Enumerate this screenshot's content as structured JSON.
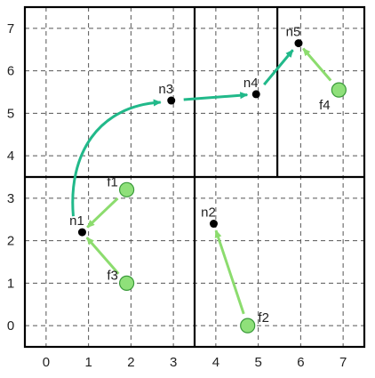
{
  "colors": {
    "grid_dash": "#555555",
    "frame": "#000000",
    "node_fill": "#000000",
    "leaf_fill": "#8fe07a",
    "leaf_stroke": "#3a9a3a",
    "leaf_arrow": "#8cdc6e",
    "node_arrow": "#21b98a"
  },
  "axes": {
    "x_ticks": [
      "0",
      "1",
      "2",
      "3",
      "4",
      "5",
      "6",
      "7"
    ],
    "y_ticks": [
      "0",
      "1",
      "2",
      "3",
      "4",
      "5",
      "6",
      "7"
    ]
  },
  "nodes": [
    {
      "id": "n1",
      "label": "n1",
      "x": 0.85,
      "y": 2.2
    },
    {
      "id": "n2",
      "label": "n2",
      "x": 3.95,
      "y": 2.4
    },
    {
      "id": "n3",
      "label": "n3",
      "x": 2.95,
      "y": 5.3
    },
    {
      "id": "n4",
      "label": "n4",
      "x": 4.95,
      "y": 5.45
    },
    {
      "id": "n5",
      "label": "n5",
      "x": 5.95,
      "y": 6.65
    }
  ],
  "leaves": [
    {
      "id": "f1",
      "label": "f1",
      "x": 1.9,
      "y": 3.2
    },
    {
      "id": "f2",
      "label": "f2",
      "x": 4.75,
      "y": 0.0
    },
    {
      "id": "f3",
      "label": "f3",
      "x": 1.9,
      "y": 1.0
    },
    {
      "id": "f4",
      "label": "f4",
      "x": 6.9,
      "y": 5.55
    }
  ],
  "leaf_links": [
    {
      "from": "f1",
      "to": "n1"
    },
    {
      "from": "f3",
      "to": "n1"
    },
    {
      "from": "f2",
      "to": "n2"
    },
    {
      "from": "f4",
      "to": "n5"
    }
  ],
  "node_links": [
    {
      "from": "n1",
      "to": "n3",
      "curved": true
    },
    {
      "from": "n3",
      "to": "n4",
      "curved": false
    },
    {
      "from": "n4",
      "to": "n5",
      "curved": false
    }
  ]
}
